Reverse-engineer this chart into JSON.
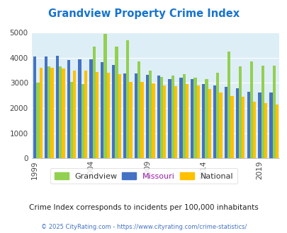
{
  "title": "Grandview Property Crime Index",
  "title_color": "#1874cd",
  "bg_color": "#ddeef6",
  "outer_bg": "#ffffff",
  "years": [
    1999,
    2000,
    2001,
    2002,
    2003,
    2004,
    2005,
    2006,
    2007,
    2008,
    2009,
    2010,
    2011,
    2012,
    2013,
    2014,
    2015,
    2016,
    2017,
    2018,
    2019,
    2020,
    2021
  ],
  "grandview": [
    3000,
    3650,
    3650,
    3050,
    2950,
    4450,
    4950,
    4450,
    4700,
    3850,
    3500,
    3250,
    3300,
    3350,
    3200,
    3150,
    3400,
    4250,
    3650,
    3850,
    3700,
    3700,
    null
  ],
  "missouri": [
    4050,
    4050,
    4080,
    3900,
    3930,
    3930,
    3820,
    3720,
    3380,
    3380,
    3330,
    3300,
    3150,
    3200,
    3150,
    2950,
    2900,
    2850,
    2800,
    2650,
    2620,
    2620,
    null
  ],
  "national": [
    3600,
    3600,
    3580,
    3500,
    3480,
    3430,
    3400,
    3360,
    3050,
    3050,
    2980,
    2890,
    2860,
    2970,
    2900,
    2750,
    2620,
    2470,
    2440,
    2250,
    2200,
    2130,
    null
  ],
  "grandview_color": "#92d050",
  "missouri_color": "#4472c4",
  "national_color": "#ffc000",
  "ylim": [
    0,
    5000
  ],
  "yticks": [
    0,
    1000,
    2000,
    3000,
    4000,
    5000
  ],
  "xtick_years": [
    1999,
    2004,
    2009,
    2014,
    2019
  ],
  "subtitle": "Crime Index corresponds to incidents per 100,000 inhabitants",
  "subtitle_color": "#222222",
  "footer": "© 2025 CityRating.com - https://www.cityrating.com/crime-statistics/",
  "footer_color": "#4472c4",
  "legend_labels": [
    "Grandview",
    "Missouri",
    "National"
  ],
  "legend_text_colors": [
    "#333333",
    "#9b1faa",
    "#333333"
  ]
}
